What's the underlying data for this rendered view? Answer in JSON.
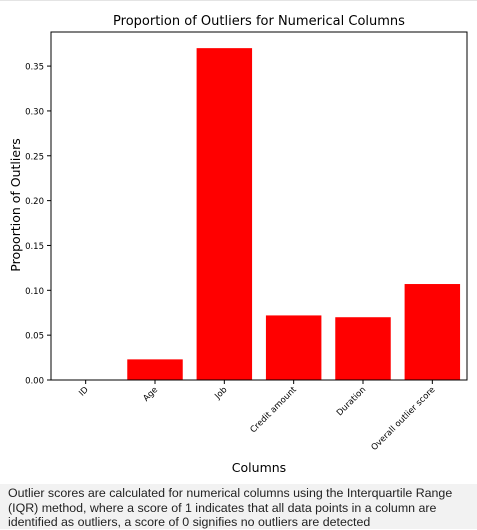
{
  "colors": {
    "bar": "#ff0000",
    "axis": "#000000",
    "caption_bg": "#f2f2f2"
  },
  "chart_data": {
    "type": "bar",
    "title": "Proportion of Outliers for Numerical Columns",
    "xlabel": "Columns",
    "ylabel": "Proportion of Outliers",
    "categories": [
      "ID",
      "Age",
      "Job",
      "Credit amount",
      "Duration",
      "Overall outlier score"
    ],
    "values": [
      0.0,
      0.023,
      0.37,
      0.072,
      0.07,
      0.107
    ],
    "ylim": [
      0,
      0.388
    ],
    "yticks": [
      "0.00",
      "0.05",
      "0.10",
      "0.15",
      "0.20",
      "0.25",
      "0.30",
      "0.35"
    ],
    "grid": false,
    "legend": "none"
  },
  "caption": {
    "text": "Outlier scores are calculated for numerical columns using the Interquartile Range (IQR) method, where a score of 1 indicates that all data points in a column are identified as outliers, a score of 0 signifies no outliers are detected"
  }
}
